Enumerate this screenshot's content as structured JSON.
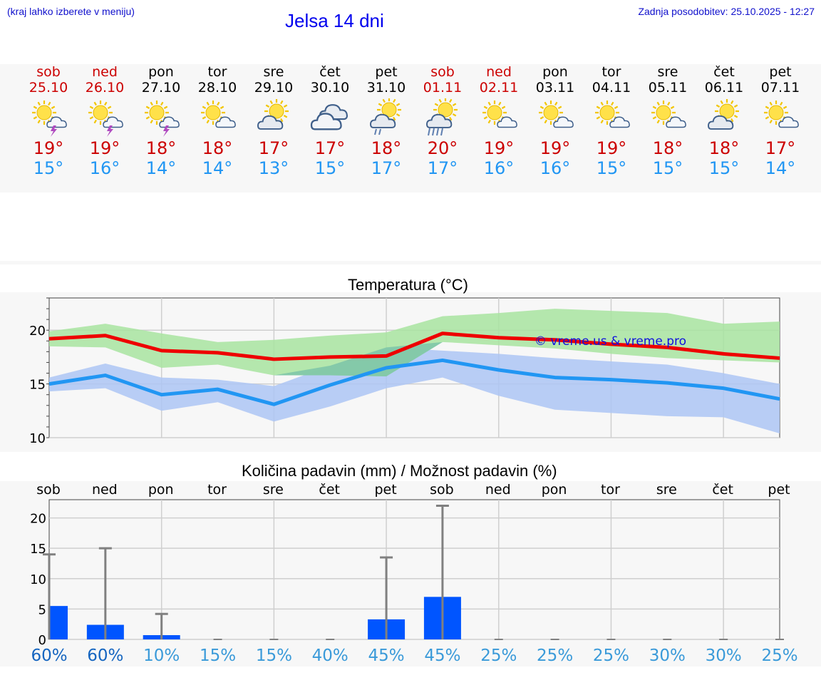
{
  "header": {
    "location_note": "(kraj lahko izberete v meniju)",
    "title": "Jelsa 14 dni",
    "updated": "Zadnja posodobitev: 25.10.2025 - 12:27"
  },
  "days": [
    {
      "name": "sob",
      "date": "25.10",
      "weekend": true,
      "icon": "sun-cloud-thunder-icon",
      "max": "19°",
      "min": "15°"
    },
    {
      "name": "ned",
      "date": "26.10",
      "weekend": true,
      "icon": "sun-cloud-thunder-icon",
      "max": "19°",
      "min": "16°"
    },
    {
      "name": "pon",
      "date": "27.10",
      "weekend": false,
      "icon": "sun-cloud-thunder-icon",
      "max": "18°",
      "min": "14°"
    },
    {
      "name": "tor",
      "date": "28.10",
      "weekend": false,
      "icon": "sun-small-cloud-icon",
      "max": "18°",
      "min": "14°"
    },
    {
      "name": "sre",
      "date": "29.10",
      "weekend": false,
      "icon": "sun-cloud-icon",
      "max": "17°",
      "min": "13°"
    },
    {
      "name": "čet",
      "date": "30.10",
      "weekend": false,
      "icon": "cloudy-icon",
      "max": "17°",
      "min": "15°"
    },
    {
      "name": "pet",
      "date": "31.10",
      "weekend": false,
      "icon": "sun-cloud-light-rain-icon",
      "max": "18°",
      "min": "17°"
    },
    {
      "name": "sob",
      "date": "01.11",
      "weekend": true,
      "icon": "sun-cloud-rain-icon",
      "max": "20°",
      "min": "17°"
    },
    {
      "name": "ned",
      "date": "02.11",
      "weekend": true,
      "icon": "sun-small-cloud-icon",
      "max": "19°",
      "min": "16°"
    },
    {
      "name": "pon",
      "date": "03.11",
      "weekend": false,
      "icon": "sun-small-cloud-icon",
      "max": "19°",
      "min": "16°"
    },
    {
      "name": "tor",
      "date": "04.11",
      "weekend": false,
      "icon": "sun-small-cloud-icon",
      "max": "19°",
      "min": "15°"
    },
    {
      "name": "sre",
      "date": "05.11",
      "weekend": false,
      "icon": "sun-small-cloud-icon",
      "max": "18°",
      "min": "15°"
    },
    {
      "name": "čet",
      "date": "06.11",
      "weekend": false,
      "icon": "sun-cloud-icon",
      "max": "18°",
      "min": "15°"
    },
    {
      "name": "pet",
      "date": "07.11",
      "weekend": false,
      "icon": "sun-small-cloud-icon",
      "max": "17°",
      "min": "14°"
    }
  ],
  "colors": {
    "max_line": "#ee0000",
    "min_line": "#2196f3",
    "max_band": "#a8e4a0",
    "min_band": "#adc6f5",
    "overlap_band": "#7fc6a8",
    "bar": "#0055ff",
    "weekend": "#cc0000"
  },
  "chart_data": [
    {
      "type": "line",
      "title": "Temperatura (°C)",
      "x": [
        0,
        1,
        2,
        3,
        4,
        5,
        6,
        7,
        8,
        9,
        10,
        11,
        12,
        13
      ],
      "ylim": [
        10,
        23
      ],
      "yticks": [
        10,
        15,
        20
      ],
      "watermark": "© vreme.us & vreme.pro",
      "series": [
        {
          "name": "max",
          "values": [
            19.2,
            19.5,
            18.1,
            17.9,
            17.3,
            17.5,
            17.6,
            19.7,
            19.3,
            19.1,
            18.7,
            18.4,
            17.8,
            17.4
          ]
        },
        {
          "name": "min",
          "values": [
            15.0,
            15.8,
            14.0,
            14.5,
            13.1,
            14.9,
            16.5,
            17.2,
            16.3,
            15.6,
            15.4,
            15.1,
            14.6,
            13.6
          ]
        },
        {
          "name": "max_band_high",
          "values": [
            19.9,
            20.6,
            19.7,
            18.9,
            19.1,
            19.5,
            19.8,
            21.3,
            21.6,
            22.0,
            21.8,
            21.6,
            20.6,
            20.8
          ]
        },
        {
          "name": "max_band_low",
          "values": [
            18.5,
            18.4,
            16.5,
            16.8,
            15.8,
            15.8,
            15.7,
            18.9,
            18.6,
            18.3,
            17.8,
            17.4,
            17.2,
            17.0
          ]
        },
        {
          "name": "min_band_high",
          "values": [
            15.6,
            16.9,
            15.6,
            15.4,
            14.8,
            16.7,
            18.4,
            18.1,
            17.8,
            17.4,
            17.1,
            16.8,
            16.0,
            15.0
          ]
        },
        {
          "name": "min_band_low",
          "values": [
            14.3,
            14.6,
            12.5,
            13.3,
            11.5,
            12.9,
            14.6,
            15.6,
            13.9,
            12.6,
            12.3,
            12.0,
            11.9,
            10.4
          ]
        }
      ]
    },
    {
      "type": "bar",
      "title": "Količina padavin (mm) / Možnost padavin (%)",
      "categories": [
        "sob",
        "ned",
        "pon",
        "tor",
        "sre",
        "čet",
        "pet",
        "sob",
        "ned",
        "pon",
        "tor",
        "sre",
        "čet",
        "pet"
      ],
      "yticks": [
        0,
        5,
        10,
        15,
        20
      ],
      "ylim": [
        0,
        23
      ],
      "series": [
        {
          "name": "amount_mm",
          "values": [
            5.5,
            2.4,
            0.7,
            0,
            0,
            0,
            3.3,
            7.0,
            0,
            0,
            0,
            0,
            0,
            0
          ]
        },
        {
          "name": "amount_max_mm",
          "values": [
            14,
            15,
            4.2,
            0,
            0,
            0,
            13.5,
            22,
            0,
            0,
            0,
            0,
            0,
            0
          ]
        }
      ],
      "probability": [
        "60%",
        "60%",
        "10%",
        "15%",
        "15%",
        "40%",
        "45%",
        "45%",
        "25%",
        "25%",
        "25%",
        "30%",
        "30%",
        "25%"
      ],
      "probability_emphasis": [
        true,
        true,
        false,
        false,
        false,
        false,
        false,
        false,
        false,
        false,
        false,
        false,
        false,
        false
      ]
    }
  ]
}
